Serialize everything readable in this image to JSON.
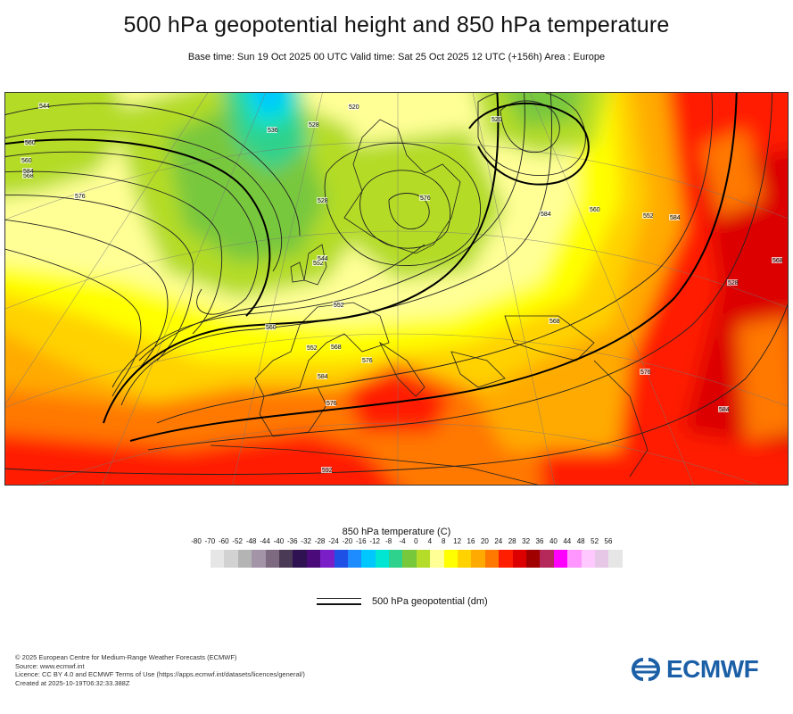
{
  "title": "500 hPa geopotential height and 850 hPa temperature",
  "subtitle": "Base time: Sun 19 Oct 2025 00 UTC Valid time: Sat 25 Oct 2025 12 UTC (+156h) Area : Europe",
  "map": {
    "contour_labels": [
      "544",
      "560",
      "560",
      "568",
      "576",
      "528",
      "536",
      "520",
      "528",
      "520",
      "552",
      "544",
      "552",
      "560",
      "552",
      "568",
      "576",
      "584",
      "576",
      "576",
      "584",
      "560",
      "552",
      "584",
      "568",
      "528",
      "568",
      "576",
      "584",
      "592",
      "584"
    ]
  },
  "legend": {
    "title": "850 hPa temperature (C)",
    "ticks": [
      "-80",
      "-70",
      "-60",
      "-52",
      "-48",
      "-44",
      "-40",
      "-36",
      "-32",
      "-28",
      "-24",
      "-20",
      "-16",
      "-12",
      "-8",
      "-4",
      "0",
      "4",
      "8",
      "12",
      "16",
      "20",
      "24",
      "28",
      "32",
      "36",
      "40",
      "44",
      "48",
      "52",
      "56"
    ],
    "colors": [
      "#e6e6e6",
      "#d2d2d2",
      "#b4b4b4",
      "#a394a8",
      "#7d6a80",
      "#4b3a55",
      "#2e1252",
      "#4a0a7a",
      "#7a1ec8",
      "#1e50e6",
      "#1e8cff",
      "#00c8ff",
      "#00e6d2",
      "#2ed28c",
      "#78c83c",
      "#b4dc28",
      "#ffff96",
      "#ffff00",
      "#ffd200",
      "#ffaa00",
      "#ff7800",
      "#ff1e00",
      "#dc0000",
      "#a00000",
      "#b4285a",
      "#ff00ff",
      "#ff96ff",
      "#ffc8ff",
      "#e6c8e6",
      "#e6e6e6"
    ],
    "geopotential_label": "500 hPa geopotential (dm)"
  },
  "footer": {
    "lines": [
      "© 2025 European Centre for Medium-Range Weather Forecasts (ECMWF)",
      "Source: www.ecmwf.int",
      "Licence: CC BY 4.0 and ECMWF Terms of Use (https://apps.ecmwf.int/datasets/licences/general/)",
      "Created at 2025-10-19T06:32:33.388Z"
    ]
  },
  "logo": {
    "text": "ECMWF",
    "color": "#1b5fa7"
  }
}
